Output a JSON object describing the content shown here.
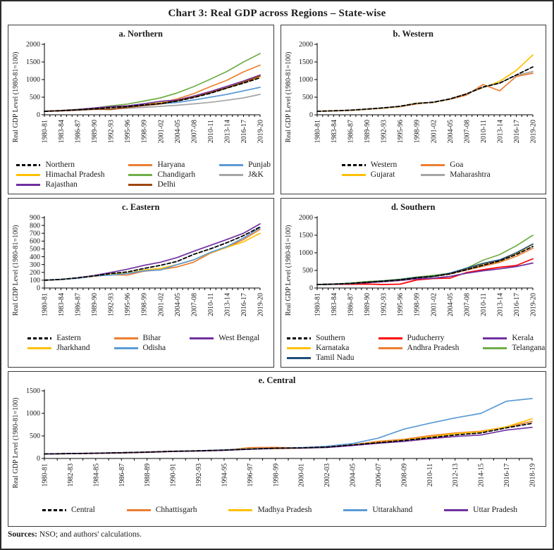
{
  "title": "Chart 3: Real GDP across Regions – State-wise",
  "footer": {
    "sources_label": "Sources:",
    "sources_text": " NSO; and authors' calculations."
  },
  "chart_data": [
    {
      "id": "northern",
      "type": "line",
      "title": "a. Northern",
      "ylabel": "Real GDP Level (1980-81=100)",
      "ylim": [
        0,
        2000
      ],
      "ytick_step": 500,
      "grid": false,
      "legend_position": "bottom",
      "legend_columns": 3,
      "minor_per_gap": 2,
      "categories": [
        "1980-81",
        "1983-84",
        "1986-87",
        "1989-90",
        "1992-93",
        "1995-96",
        "1998-99",
        "2001-02",
        "2004-05",
        "2007-08",
        "2010-11",
        "2013-14",
        "2016-17",
        "2019-20"
      ],
      "series": [
        {
          "name": "Northern",
          "color": "#000000",
          "dash": true,
          "values": [
            100,
            115,
            140,
            170,
            200,
            235,
            280,
            320,
            390,
            490,
            610,
            760,
            900,
            1050
          ]
        },
        {
          "name": "Haryana",
          "color": "#ED7D31",
          "dash": false,
          "values": [
            100,
            115,
            145,
            175,
            205,
            245,
            295,
            340,
            450,
            600,
            800,
            980,
            1220,
            1410
          ]
        },
        {
          "name": "Punjab",
          "color": "#5B9BD5",
          "dash": false,
          "values": [
            100,
            118,
            148,
            178,
            210,
            245,
            280,
            310,
            350,
            420,
            500,
            580,
            680,
            780
          ]
        },
        {
          "name": "Himachal Pradesh",
          "color": "#FFC000",
          "dash": false,
          "values": [
            100,
            116,
            142,
            175,
            210,
            250,
            305,
            335,
            405,
            505,
            625,
            755,
            910,
            1080
          ]
        },
        {
          "name": "Chandigarh",
          "color": "#70AD47",
          "dash": false,
          "values": [
            100,
            125,
            155,
            195,
            255,
            305,
            390,
            480,
            620,
            800,
            1010,
            1230,
            1500,
            1740
          ]
        },
        {
          "name": "J&K",
          "color": "#A5A5A5",
          "dash": false,
          "values": [
            100,
            114,
            130,
            150,
            162,
            185,
            210,
            240,
            270,
            310,
            355,
            415,
            480,
            580
          ]
        },
        {
          "name": "Rajasthan",
          "color": "#7030A0",
          "dash": false,
          "values": [
            100,
            120,
            148,
            190,
            235,
            255,
            315,
            385,
            420,
            530,
            660,
            810,
            960,
            1130
          ]
        },
        {
          "name": "Delhi",
          "color": "#9E480E",
          "dash": false,
          "values": [
            100,
            112,
            135,
            160,
            150,
            210,
            260,
            310,
            400,
            505,
            630,
            770,
            930,
            1100
          ]
        }
      ]
    },
    {
      "id": "western",
      "type": "line",
      "title": "b. Western",
      "ylabel": "Real GDP Level (1980-81=100)",
      "ylim": [
        0,
        2000
      ],
      "ytick_step": 500,
      "grid": false,
      "legend_position": "bottom",
      "legend_columns": 2,
      "minor_per_gap": 2,
      "categories": [
        "1980-81",
        "1983-84",
        "1986-87",
        "1989-90",
        "1992-93",
        "1995-96",
        "1998-99",
        "2001-02",
        "2004-05",
        "2007-08",
        "2010-11",
        "2013-14",
        "2016-17",
        "2019-20"
      ],
      "series": [
        {
          "name": "Western",
          "color": "#000000",
          "dash": true,
          "values": [
            100,
            113,
            130,
            162,
            196,
            242,
            325,
            355,
            450,
            590,
            790,
            900,
            1130,
            1360
          ]
        },
        {
          "name": "Goa",
          "color": "#ED7D31",
          "dash": false,
          "values": [
            100,
            108,
            124,
            155,
            190,
            230,
            310,
            360,
            440,
            560,
            860,
            680,
            1090,
            1180
          ]
        },
        {
          "name": "Gujarat",
          "color": "#FFC000",
          "dash": false,
          "values": [
            100,
            118,
            126,
            160,
            192,
            240,
            330,
            350,
            450,
            600,
            770,
            950,
            1260,
            1700
          ]
        },
        {
          "name": "Maharashtra",
          "color": "#A5A5A5",
          "dash": false,
          "values": [
            100,
            114,
            132,
            165,
            200,
            245,
            320,
            365,
            455,
            600,
            780,
            905,
            1120,
            1230
          ]
        }
      ]
    },
    {
      "id": "eastern",
      "type": "line",
      "title": "c. Eastern",
      "ylabel": "Real GDP Level (1980-81=100)",
      "ylim": [
        0,
        900
      ],
      "ytick_step": 100,
      "grid": false,
      "legend_position": "bottom",
      "legend_columns": 3,
      "minor_per_gap": 2,
      "categories": [
        "1980-81",
        "1983-84",
        "1986-87",
        "1989-90",
        "1992-93",
        "1995-96",
        "1998-99",
        "2001-02",
        "2004-05",
        "2007-08",
        "2010-11",
        "2013-14",
        "2016-17",
        "2019-20"
      ],
      "series": [
        {
          "name": "Eastern",
          "color": "#000000",
          "dash": true,
          "values": [
            100,
            110,
            130,
            155,
            185,
            205,
            250,
            290,
            340,
            430,
            500,
            580,
            670,
            780
          ]
        },
        {
          "name": "Bihar",
          "color": "#ED7D31",
          "dash": false,
          "values": [
            100,
            108,
            128,
            150,
            170,
            165,
            215,
            235,
            270,
            330,
            445,
            520,
            620,
            750
          ]
        },
        {
          "name": "West Bengal",
          "color": "#7030A0",
          "dash": false,
          "values": [
            100,
            110,
            132,
            160,
            200,
            240,
            290,
            330,
            390,
            470,
            545,
            620,
            700,
            820
          ]
        },
        {
          "name": "Jharkhand",
          "color": "#FFC000",
          "dash": false,
          "values": [
            100,
            112,
            128,
            155,
            175,
            190,
            230,
            250,
            300,
            360,
            450,
            520,
            590,
            700
          ]
        },
        {
          "name": "Odisha",
          "color": "#5B9BD5",
          "dash": false,
          "values": [
            100,
            112,
            125,
            155,
            165,
            185,
            220,
            230,
            300,
            360,
            455,
            530,
            640,
            770
          ]
        }
      ]
    },
    {
      "id": "southern",
      "type": "line",
      "title": "d. Southern",
      "ylabel": "Real GDP Level (1980-81=100)",
      "ylim": [
        0,
        2000
      ],
      "ytick_step": 500,
      "grid": false,
      "legend_position": "bottom",
      "legend_columns": 3,
      "minor_per_gap": 2,
      "categories": [
        "1980-81",
        "1983-84",
        "1986-87",
        "1989-90",
        "1992-93",
        "1995-96",
        "1998-99",
        "2001-02",
        "2004-05",
        "2007-08",
        "2010-11",
        "2013-14",
        "2016-17",
        "2019-20"
      ],
      "series": [
        {
          "name": "Southern",
          "color": "#000000",
          "dash": true,
          "values": [
            100,
            112,
            130,
            165,
            195,
            230,
            290,
            330,
            400,
            520,
            650,
            770,
            950,
            1180
          ]
        },
        {
          "name": "Puducherry",
          "color": "#FF0000",
          "dash": false,
          "values": [
            100,
            105,
            108,
            112,
            100,
            110,
            230,
            270,
            280,
            440,
            520,
            590,
            640,
            830
          ]
        },
        {
          "name": "Kerala",
          "color": "#7030A0",
          "dash": false,
          "values": [
            100,
            108,
            125,
            150,
            180,
            215,
            260,
            280,
            330,
            420,
            490,
            545,
            610,
            710
          ]
        },
        {
          "name": "Karnataka",
          "color": "#FFC000",
          "dash": false,
          "values": [
            100,
            112,
            135,
            170,
            200,
            240,
            310,
            330,
            400,
            550,
            670,
            760,
            980,
            1240
          ]
        },
        {
          "name": "Andhra Pradesh",
          "color": "#ED7D31",
          "dash": false,
          "values": [
            100,
            112,
            130,
            165,
            195,
            230,
            290,
            330,
            400,
            510,
            620,
            730,
            900,
            1130
          ]
        },
        {
          "name": "Telangana",
          "color": "#70AD47",
          "dash": false,
          "values": [
            100,
            115,
            140,
            185,
            210,
            250,
            310,
            360,
            420,
            560,
            790,
            950,
            1200,
            1500
          ]
        },
        {
          "name": "Tamil Nadu",
          "color": "#1F4E79",
          "dash": false,
          "values": [
            100,
            110,
            130,
            165,
            200,
            240,
            300,
            330,
            420,
            560,
            700,
            800,
            1000,
            1250
          ]
        }
      ]
    },
    {
      "id": "central",
      "type": "line",
      "title": "e. Central",
      "ylabel": "Real GDP Level (1980-81=100)",
      "ylim": [
        0,
        1500
      ],
      "ytick_step": 500,
      "grid": false,
      "legend_position": "bottom",
      "legend_columns": 5,
      "minor_per_gap": 1,
      "categories": [
        "1980-81",
        "1982-83",
        "1984-85",
        "1986-87",
        "1988-89",
        "1990-91",
        "1992-93",
        "1994-95",
        "1996-97",
        "1998-99",
        "2000-01",
        "2002-03",
        "2004-05",
        "2006-07",
        "2008-09",
        "2010-11",
        "2012-13",
        "2014-15",
        "2016-17",
        "2018-19"
      ],
      "series": [
        {
          "name": "Central",
          "color": "#000000",
          "dash": true,
          "values": [
            100,
            108,
            116,
            126,
            140,
            158,
            168,
            184,
            208,
            228,
            235,
            252,
            300,
            350,
            400,
            460,
            520,
            565,
            680,
            780
          ]
        },
        {
          "name": "Chhattisgarh",
          "color": "#ED7D31",
          "dash": false,
          "values": [
            100,
            107,
            112,
            120,
            135,
            158,
            165,
            180,
            240,
            245,
            232,
            248,
            302,
            380,
            425,
            505,
            565,
            605,
            700,
            820
          ]
        },
        {
          "name": "Madhya Pradesh",
          "color": "#FFC000",
          "dash": false,
          "values": [
            100,
            109,
            115,
            125,
            140,
            163,
            170,
            186,
            220,
            216,
            230,
            246,
            292,
            360,
            410,
            480,
            550,
            590,
            705,
            880
          ]
        },
        {
          "name": "Uttarakhand",
          "color": "#5B9BD5",
          "dash": false,
          "values": [
            100,
            109,
            117,
            127,
            141,
            160,
            171,
            189,
            214,
            224,
            240,
            270,
            330,
            450,
            650,
            780,
            900,
            1000,
            1270,
            1330
          ]
        },
        {
          "name": "Uttar Pradesh",
          "color": "#7030A0",
          "dash": false,
          "values": [
            100,
            108,
            116,
            126,
            139,
            156,
            166,
            181,
            204,
            224,
            229,
            244,
            288,
            338,
            378,
            438,
            488,
            520,
            630,
            690
          ]
        }
      ]
    }
  ]
}
